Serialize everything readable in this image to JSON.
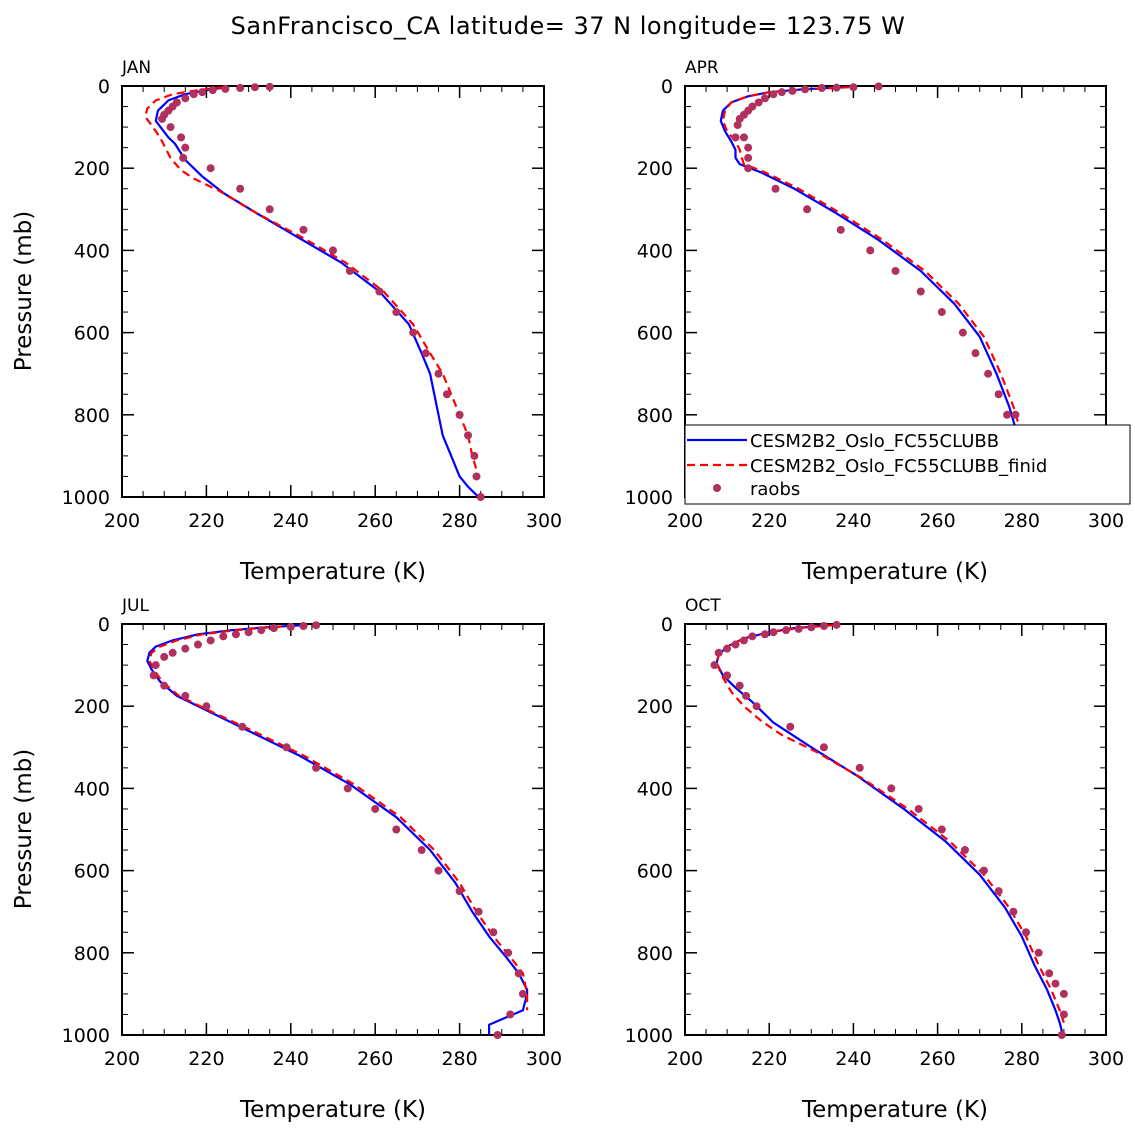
{
  "title": "SanFrancisco_CA  latitude= 37 N longitude= 123.75 W",
  "legend": [
    {
      "label": "CESM2B2_Oslo_FC55CLUBB",
      "color": "#0000ff",
      "style": "solid"
    },
    {
      "label": "CESM2B2_Oslo_FC55CLUBB_finid",
      "color": "#ff0000",
      "style": "dashed"
    },
    {
      "label": "raobs",
      "color": "#b03060",
      "style": "dot"
    }
  ],
  "colors": {
    "model": "#0000ff",
    "finid": "#ff0000",
    "raobs": "#b03060"
  },
  "chart_data": [
    {
      "type": "line",
      "panel": "JAN",
      "xlabel": "Temperature (K)",
      "ylabel": "Pressure (mb)",
      "xlim": [
        200,
        300
      ],
      "ylim": [
        1000,
        0
      ],
      "y_inverted": true,
      "xticks": [
        200,
        220,
        240,
        260,
        280,
        300
      ],
      "yticks": [
        0,
        200,
        400,
        600,
        800,
        1000
      ],
      "series": [
        {
          "name": "CESM2B2_Oslo_FC55CLUBB",
          "x": [
            225,
            220,
            215,
            211,
            208.5,
            208,
            209.5,
            211,
            212.5,
            215,
            219,
            224,
            232,
            242,
            252,
            261,
            268,
            271,
            273,
            274,
            275,
            276,
            278,
            280,
            282,
            284.5
          ],
          "y": [
            3,
            10,
            20,
            35,
            60,
            85,
            105,
            125,
            140,
            180,
            220,
            260,
            310,
            370,
            430,
            500,
            580,
            650,
            700,
            750,
            800,
            850,
            900,
            950,
            975,
            1000
          ]
        },
        {
          "name": "CESM2B2_Oslo_FC55CLUBB_finid",
          "x": [
            224,
            218,
            212,
            208,
            206,
            205.5,
            207,
            209,
            211.5,
            214,
            217,
            223,
            232,
            243,
            253,
            262,
            269,
            273,
            276,
            278,
            280,
            282,
            283,
            284.5
          ],
          "y": [
            3,
            10,
            20,
            35,
            55,
            75,
            95,
            125,
            175,
            205,
            225,
            255,
            310,
            370,
            430,
            500,
            580,
            650,
            700,
            750,
            800,
            850,
            900,
            950
          ]
        },
        {
          "name": "raobs",
          "x": [
            235,
            231.5,
            228,
            224.5,
            221.5,
            219,
            217,
            215,
            213,
            212,
            211,
            210,
            209.5,
            211.5,
            214,
            215,
            214.5,
            221,
            228,
            235,
            243,
            250,
            254,
            261,
            265,
            269,
            272,
            275,
            277,
            280,
            282,
            283.5,
            284,
            285
          ],
          "y": [
            2,
            3,
            5,
            7,
            10,
            15,
            20,
            30,
            40,
            50,
            60,
            70,
            80,
            100,
            125,
            150,
            175,
            200,
            250,
            300,
            350,
            400,
            450,
            500,
            550,
            600,
            650,
            700,
            750,
            800,
            850,
            900,
            950,
            1000
          ]
        }
      ]
    },
    {
      "type": "line",
      "panel": "APR",
      "xlabel": "Temperature (K)",
      "ylabel": "",
      "xlim": [
        200,
        300
      ],
      "ylim": [
        1000,
        0
      ],
      "y_inverted": true,
      "xticks": [
        200,
        220,
        240,
        260,
        280,
        300
      ],
      "yticks": [
        0,
        200,
        400,
        600,
        800,
        1000
      ],
      "series": [
        {
          "name": "CESM2B2_Oslo_FC55CLUBB",
          "x": [
            238,
            228,
            220,
            215,
            211,
            209,
            208.5,
            209.5,
            211,
            212,
            212,
            213,
            218,
            226,
            236,
            246,
            256,
            264,
            270,
            274,
            277,
            279,
            280,
            282,
            283.5
          ],
          "y": [
            3,
            8,
            15,
            25,
            40,
            60,
            85,
            110,
            135,
            155,
            175,
            190,
            210,
            250,
            310,
            375,
            450,
            530,
            610,
            700,
            780,
            850,
            900,
            950,
            1000
          ]
        },
        {
          "name": "CESM2B2_Oslo_FC55CLUBB_finid",
          "x": [
            239,
            229,
            220,
            215,
            211,
            209.5,
            209,
            210,
            212,
            213,
            213.5,
            214,
            219,
            227,
            237,
            247,
            257,
            265,
            271,
            275,
            278,
            280,
            282,
            284,
            285
          ],
          "y": [
            3,
            8,
            15,
            25,
            40,
            60,
            85,
            110,
            135,
            155,
            175,
            190,
            210,
            250,
            310,
            375,
            450,
            530,
            610,
            700,
            780,
            850,
            900,
            950,
            1000
          ]
        },
        {
          "name": "raobs",
          "x": [
            246,
            240,
            236,
            232.5,
            228.5,
            225.5,
            223,
            221,
            219,
            217.5,
            216,
            215,
            214,
            213,
            212.5,
            212,
            214,
            215,
            215,
            215,
            221.5,
            229,
            237,
            244,
            250,
            256,
            261,
            266,
            269,
            272,
            274.5,
            276.5,
            278.5,
            281,
            283.5,
            284.5,
            286
          ],
          "y": [
            1,
            3,
            4,
            5,
            8,
            12,
            15,
            20,
            30,
            40,
            50,
            60,
            70,
            80,
            95,
            125,
            125,
            150,
            175,
            200,
            250,
            300,
            350,
            400,
            450,
            500,
            550,
            600,
            650,
            700,
            750,
            800,
            800,
            850,
            900,
            950,
            1000
          ]
        }
      ]
    },
    {
      "type": "line",
      "panel": "JUL",
      "xlabel": "Temperature (K)",
      "ylabel": "Pressure (mb)",
      "xlim": [
        200,
        300
      ],
      "ylim": [
        1000,
        0
      ],
      "y_inverted": true,
      "xticks": [
        200,
        220,
        240,
        260,
        280,
        300
      ],
      "yticks": [
        0,
        200,
        400,
        600,
        800,
        1000
      ],
      "series": [
        {
          "name": "CESM2B2_Oslo_FC55CLUBB",
          "x": [
            243,
            234,
            226,
            218,
            212,
            208,
            206.5,
            206,
            207,
            209,
            213,
            220,
            230,
            242,
            254,
            265,
            273,
            279,
            283,
            287,
            291,
            294,
            296,
            296,
            295,
            287,
            287
          ],
          "y": [
            3,
            8,
            15,
            25,
            40,
            55,
            70,
            90,
            110,
            140,
            175,
            210,
            260,
            320,
            390,
            470,
            550,
            630,
            700,
            760,
            810,
            850,
            890,
            900,
            940,
            975,
            1000
          ]
        },
        {
          "name": "CESM2B2_Oslo_FC55CLUBB_finid",
          "x": [
            244,
            235,
            227,
            219,
            213,
            209,
            207,
            206.5,
            207.5,
            209.5,
            213.5,
            220.5,
            231,
            243,
            255,
            266,
            274,
            280,
            284,
            288,
            292,
            295,
            296,
            296
          ],
          "y": [
            3,
            8,
            15,
            25,
            40,
            55,
            70,
            90,
            110,
            140,
            175,
            210,
            260,
            320,
            390,
            470,
            550,
            630,
            700,
            760,
            810,
            850,
            900,
            940
          ]
        },
        {
          "name": "raobs",
          "x": [
            246,
            243,
            240,
            236,
            233,
            230,
            227,
            224,
            221,
            218,
            215,
            212,
            210,
            208,
            207.5,
            210,
            215,
            220,
            228.5,
            239,
            246,
            253.5,
            260,
            265,
            271,
            275,
            280,
            284.5,
            288,
            291.5,
            294,
            295,
            292,
            289
          ],
          "y": [
            3,
            5,
            7,
            10,
            15,
            20,
            25,
            30,
            40,
            50,
            60,
            70,
            80,
            100,
            125,
            150,
            175,
            200,
            250,
            300,
            350,
            400,
            450,
            500,
            550,
            600,
            650,
            700,
            750,
            800,
            850,
            900,
            950,
            1000
          ]
        }
      ]
    },
    {
      "type": "line",
      "panel": "OCT",
      "xlabel": "Temperature (K)",
      "ylabel": "",
      "xlim": [
        200,
        300
      ],
      "ylim": [
        1000,
        0
      ],
      "y_inverted": true,
      "xticks": [
        200,
        220,
        240,
        260,
        280,
        300
      ],
      "yticks": [
        0,
        200,
        400,
        600,
        800,
        1000
      ],
      "series": [
        {
          "name": "CESM2B2_Oslo_FC55CLUBB",
          "x": [
            234,
            226,
            220,
            214,
            210,
            208,
            207.5,
            209,
            212,
            216,
            221,
            230,
            241,
            252,
            262,
            270,
            276,
            280,
            283,
            286,
            288,
            289,
            289.5,
            289
          ],
          "y": [
            3,
            10,
            20,
            35,
            55,
            75,
            95,
            125,
            155,
            190,
            240,
            300,
            370,
            450,
            530,
            610,
            690,
            760,
            830,
            890,
            940,
            970,
            990,
            1000
          ]
        },
        {
          "name": "CESM2B2_Oslo_FC55CLUBB_finid",
          "x": [
            235,
            227,
            220,
            214,
            210,
            208,
            207.5,
            209,
            211,
            214,
            218,
            223,
            231,
            242,
            253,
            263,
            271,
            277,
            281,
            284,
            287,
            289,
            290
          ],
          "y": [
            3,
            10,
            20,
            35,
            55,
            75,
            95,
            130,
            165,
            200,
            235,
            270,
            310,
            375,
            450,
            530,
            610,
            690,
            760,
            830,
            890,
            940,
            970
          ]
        },
        {
          "name": "raobs",
          "x": [
            236,
            233,
            230,
            227,
            224,
            221,
            219,
            216,
            214,
            212,
            210,
            208,
            207,
            210,
            213,
            214.5,
            217,
            225,
            233,
            241.5,
            249,
            255.5,
            261,
            266.5,
            271,
            274.5,
            278,
            281,
            284,
            286.5,
            288,
            290,
            290,
            289.5
          ],
          "y": [
            2,
            5,
            8,
            12,
            15,
            20,
            25,
            30,
            40,
            50,
            60,
            70,
            100,
            125,
            150,
            175,
            200,
            250,
            300,
            350,
            400,
            450,
            500,
            550,
            600,
            650,
            700,
            750,
            800,
            850,
            875,
            900,
            950,
            1000
          ]
        }
      ]
    }
  ]
}
